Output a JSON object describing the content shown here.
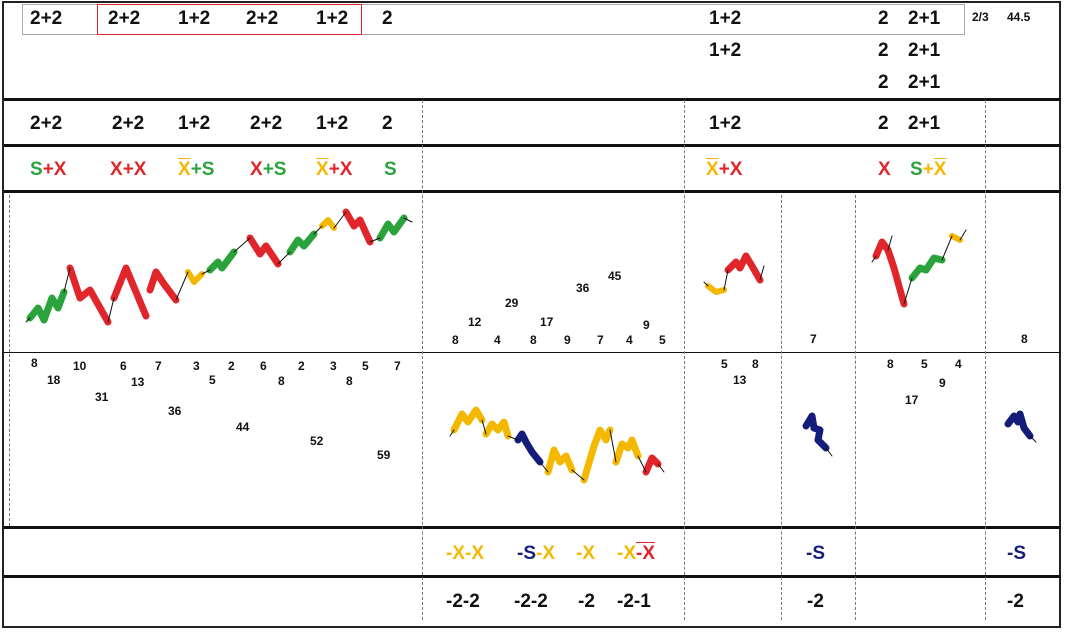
{
  "row1": {
    "left": "2+2",
    "boxed": [
      "2+2",
      "1+2",
      "2+2",
      "1+2"
    ],
    "after": "2",
    "mid": [
      "1+2",
      "1+2"
    ],
    "right_a": [
      "2",
      "2",
      "2"
    ],
    "right_b": [
      "2+1",
      "2+1",
      "2+1"
    ],
    "ratio": "2/3",
    "value": "44.5"
  },
  "row2": {
    "items": [
      "2+2",
      "2+2",
      "1+2",
      "2+2",
      "1+2",
      "2"
    ],
    "mid": "1+2",
    "right_a": "2",
    "right_b": "2+1"
  },
  "row3": {
    "seg1": {
      "a": "S",
      "op": "+",
      "b": "X"
    },
    "seg2": {
      "a": "X",
      "op": "+",
      "b": "X"
    },
    "seg3": {
      "a": "X",
      "op": "+",
      "b": "S"
    },
    "seg4": {
      "a": "X",
      "op": "+",
      "b": "S"
    },
    "seg5": {
      "a": "X",
      "op": "+",
      "b": "X"
    },
    "seg6": "S",
    "mid": {
      "a": "X",
      "op": "+",
      "b": "X"
    },
    "right1": "X",
    "right2": {
      "a": "S",
      "op": "+",
      "b": "X"
    }
  },
  "upper_numbers": {
    "mid": [
      "8",
      "12",
      "4",
      "29",
      "8",
      "17",
      "9",
      "36",
      "7",
      "45",
      "4",
      "9",
      "5"
    ],
    "col7": "7",
    "col9": "8"
  },
  "lower_numbers": {
    "left": [
      "8",
      "18",
      "10",
      "31",
      "6",
      "13",
      "7",
      "36",
      "3",
      "5",
      "2",
      "44",
      "6",
      "8",
      "2",
      "52",
      "3",
      "8",
      "5",
      "59",
      "7"
    ],
    "col5": [
      "5",
      "13",
      "8"
    ],
    "col8": [
      "8",
      "17",
      "5",
      "9",
      "4"
    ]
  },
  "row5": {
    "seg1": {
      "a": "-X",
      "b": "-X"
    },
    "seg2": {
      "a": "-S",
      "b": "-X"
    },
    "seg3": "-X",
    "seg4": {
      "a": "-X",
      "b": "-X"
    },
    "col7": "-S",
    "col9": "-S"
  },
  "row6": {
    "items": [
      "-2-2",
      "-2-2",
      "-2",
      "-2-1"
    ],
    "col7": "-2",
    "col9": "-2"
  },
  "colors": {
    "green": "#2aa33c",
    "red": "#e0262b",
    "yellow": "#f4b800",
    "navy": "#141e7a"
  }
}
